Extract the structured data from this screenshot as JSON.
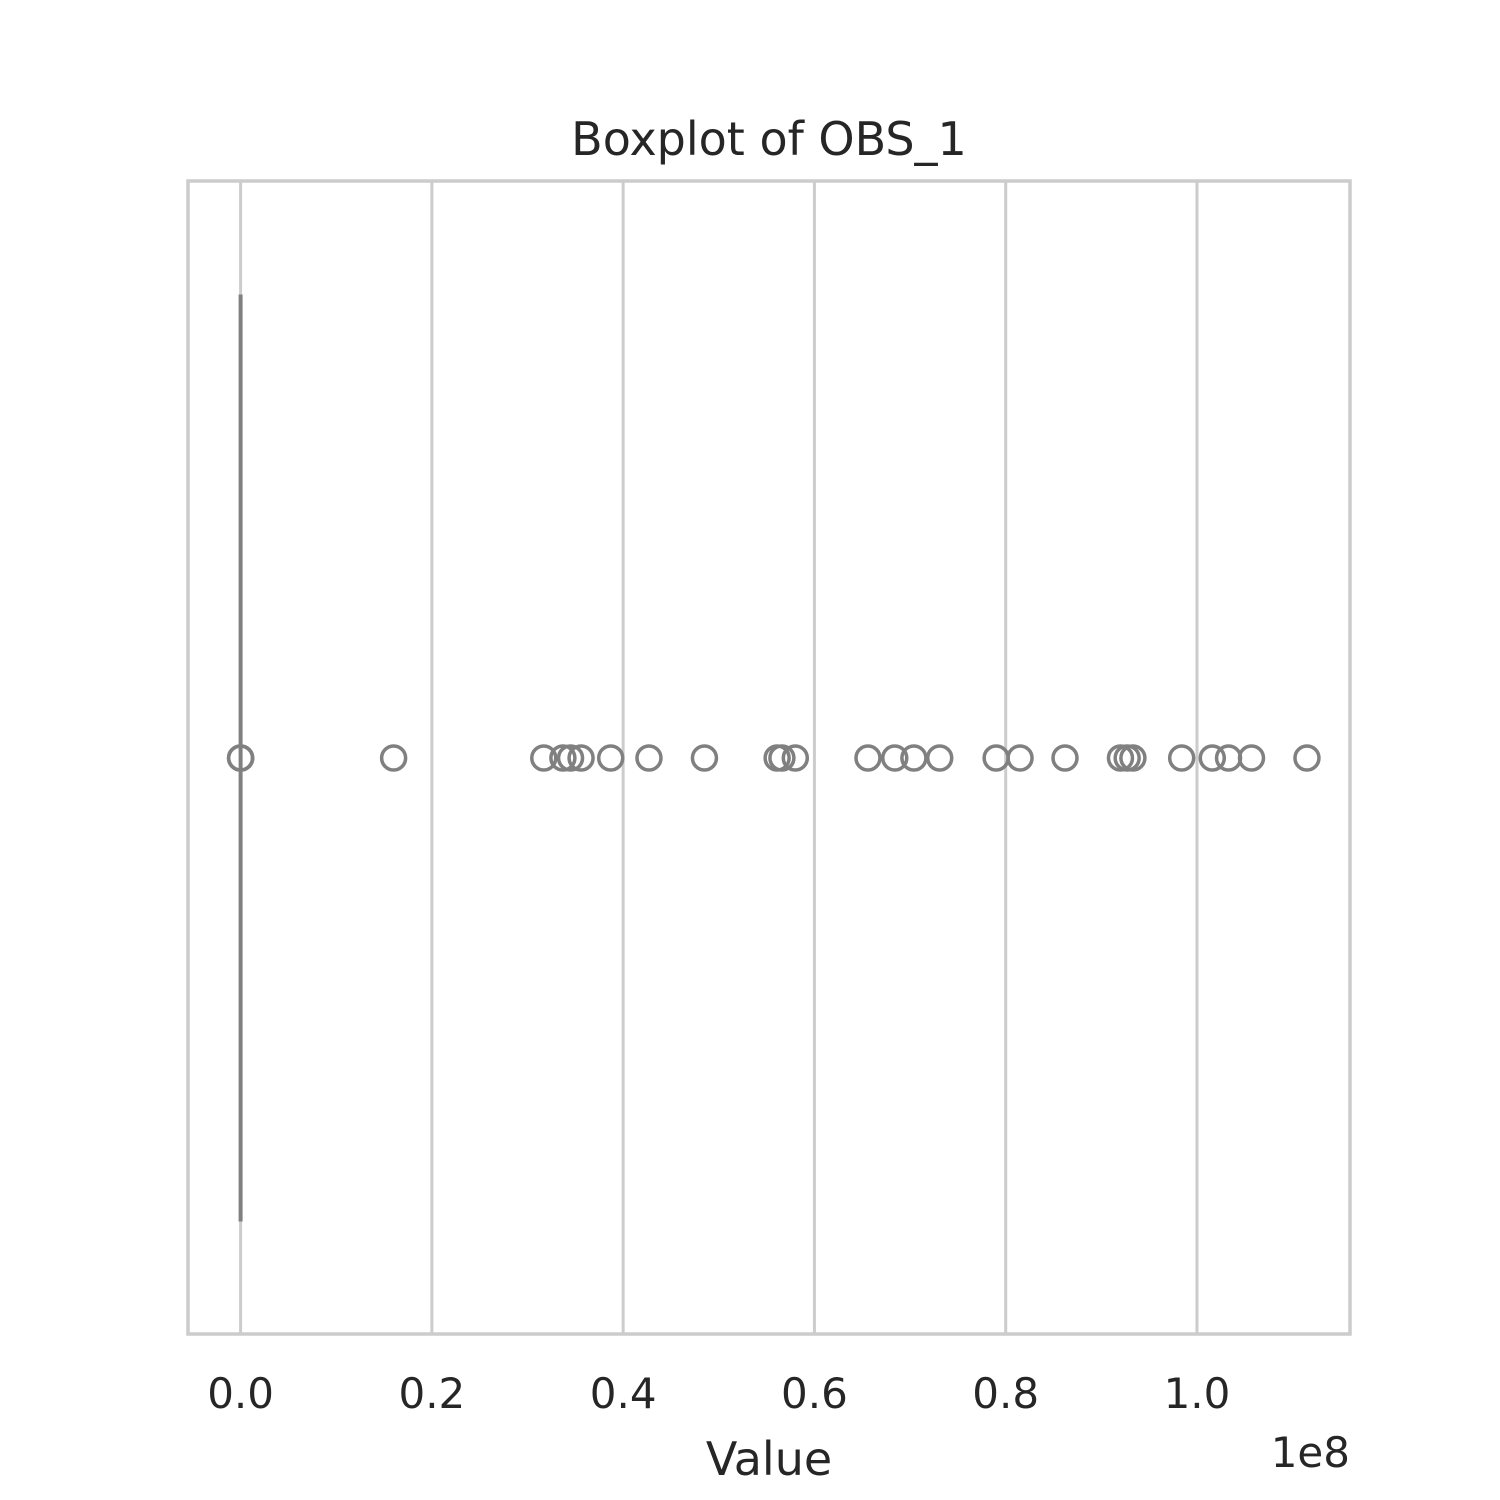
{
  "chart_data": {
    "type": "box",
    "orientation": "horizontal",
    "title": "Boxplot of OBS_1",
    "xlabel": "Value",
    "ylabel": "",
    "offset_label": "1e8",
    "scale_exponent": 8,
    "xlim": [
      -0.055,
      1.16
    ],
    "xticks": [
      0.0,
      0.2,
      0.4,
      0.6,
      0.8,
      1.0
    ],
    "xtick_labels": [
      "0.0",
      "0.2",
      "0.4",
      "0.6",
      "0.8",
      "1.0"
    ],
    "grid": true,
    "box": {
      "q1": 0.0,
      "median": 0.0,
      "q3": 0.0,
      "whisker_low": 0.0,
      "whisker_high": 0.0
    },
    "outliers": [
      0.0,
      0.0,
      0.0,
      0.16,
      0.317,
      0.337,
      0.345,
      0.356,
      0.387,
      0.427,
      0.485,
      0.561,
      0.566,
      0.58,
      0.656,
      0.684,
      0.704,
      0.731,
      0.79,
      0.815,
      0.862,
      0.92,
      0.927,
      0.933,
      0.984,
      1.016,
      1.033,
      1.057,
      1.115
    ],
    "colors": {
      "box": "#808080",
      "grid": "#cccccc",
      "text": "#262626"
    }
  }
}
